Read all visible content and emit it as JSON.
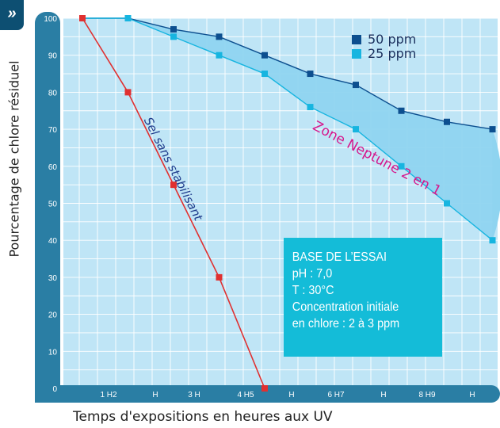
{
  "chart_data": {
    "type": "line",
    "ylabel": "Pourcentage de chlore résiduel",
    "xlabel": "Temps d'expositions en heures aux UV",
    "y_ticks": [
      "0",
      "10",
      "20",
      "30",
      "40",
      "50",
      "60",
      "70",
      "80",
      "90",
      "100"
    ],
    "ylim": [
      0,
      100
    ],
    "x_ticks": [
      "1 H2",
      "H",
      "3 H",
      "4 H5",
      "H",
      "6 H7",
      "H",
      "8 H9",
      "H"
    ],
    "grid": true,
    "legend_position": "top-right",
    "series": [
      {
        "name": "50 ppm",
        "color": "#0d4f8f",
        "points": [
          [
            0,
            100
          ],
          [
            1,
            100
          ],
          [
            2,
            97
          ],
          [
            3,
            95
          ],
          [
            4,
            90
          ],
          [
            5,
            85
          ],
          [
            6,
            82
          ],
          [
            7,
            75
          ],
          [
            8,
            72
          ],
          [
            9,
            70
          ]
        ]
      },
      {
        "name": "25 ppm",
        "color": "#17b5e0",
        "points": [
          [
            0,
            100
          ],
          [
            1,
            100
          ],
          [
            2,
            95
          ],
          [
            3,
            90
          ],
          [
            4,
            85
          ],
          [
            5,
            76
          ],
          [
            6,
            70
          ],
          [
            7,
            60
          ],
          [
            8,
            50
          ],
          [
            9,
            40
          ]
        ]
      },
      {
        "name": "",
        "label": "Sel sans stabilisant",
        "color": "#e03030",
        "points": [
          [
            0,
            100
          ],
          [
            1,
            80
          ],
          [
            2,
            55
          ],
          [
            3,
            30
          ],
          [
            4,
            0
          ]
        ]
      }
    ],
    "annotations": {
      "zone": "Zone Neptune 2 en 1",
      "sel": "Sel sans stabilisant"
    },
    "info_box": {
      "title": "BASE DE L’ESSAI",
      "lines": [
        "pH : 7,0",
        "T : 30°C",
        "Concentration initiale",
        "en chlore : 2 à 3 ppm"
      ],
      "color": "#14bcd8"
    },
    "colors": {
      "plot_background": "#bfe5f6",
      "zone_fill": "#8fd4f0",
      "axis_bar": "#2a7ea4"
    }
  }
}
